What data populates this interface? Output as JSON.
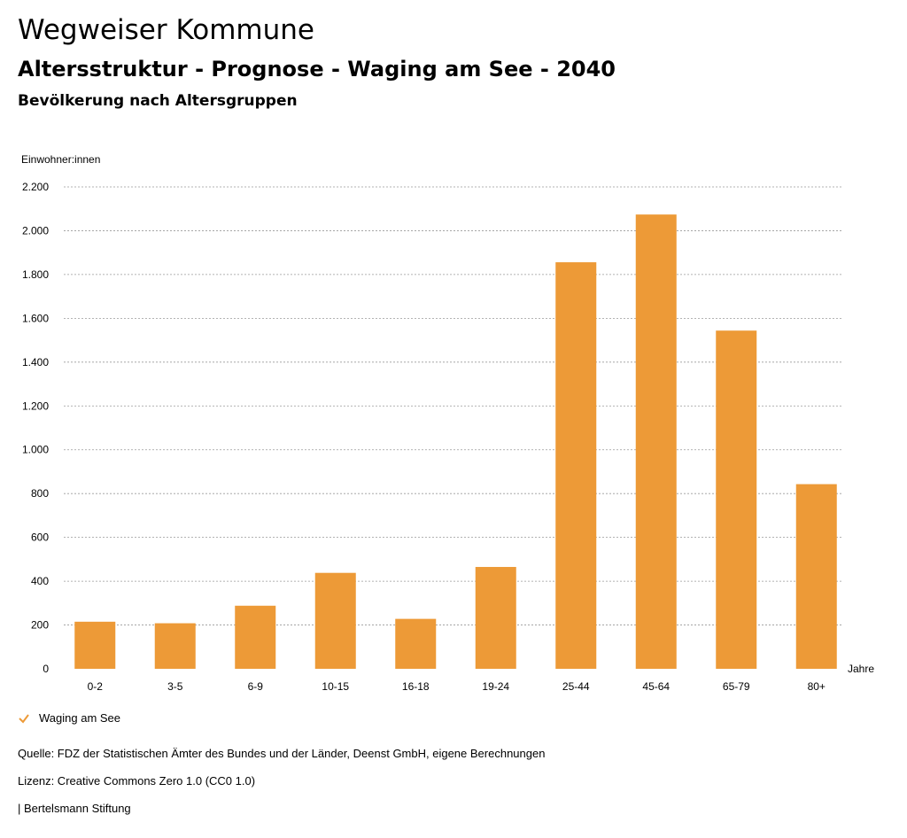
{
  "header": {
    "title": "Wegweiser Kommune",
    "subtitle": "Altersstruktur - Prognose - Waging am See - 2040",
    "subsubtitle": "Bevölkerung nach Altersgruppen"
  },
  "chart_data": {
    "type": "bar",
    "ylabel": "Einwohner:innen",
    "xlabel": "Jahre",
    "ylim": [
      0,
      2200
    ],
    "yticks": [
      0,
      200,
      400,
      600,
      800,
      1000,
      1200,
      1400,
      1600,
      1800,
      2000,
      2200
    ],
    "ytick_labels": [
      "0",
      "200",
      "400",
      "600",
      "800",
      "1.000",
      "1.200",
      "1.400",
      "1.600",
      "1.800",
      "2.000",
      "2.200"
    ],
    "categories": [
      "0-2",
      "3-5",
      "6-9",
      "10-15",
      "16-18",
      "19-24",
      "25-44",
      "45-64",
      "65-79",
      "80+"
    ],
    "series": [
      {
        "name": "Waging am See",
        "color": "#ED9A37",
        "values": [
          215,
          208,
          288,
          438,
          228,
          465,
          1856,
          2074,
          1544,
          843
        ]
      }
    ],
    "grid": true,
    "legend_position": "bottom-left"
  },
  "legend": {
    "label": "Waging am See",
    "color": "#ED9A37"
  },
  "footer": {
    "source": "Quelle: FDZ der Statistischen Ämter des Bundes und der Länder, Deenst GmbH, eigene Berechnungen",
    "license": "Lizenz: Creative Commons Zero 1.0 (CC0 1.0)",
    "org": "| Bertelsmann Stiftung"
  }
}
